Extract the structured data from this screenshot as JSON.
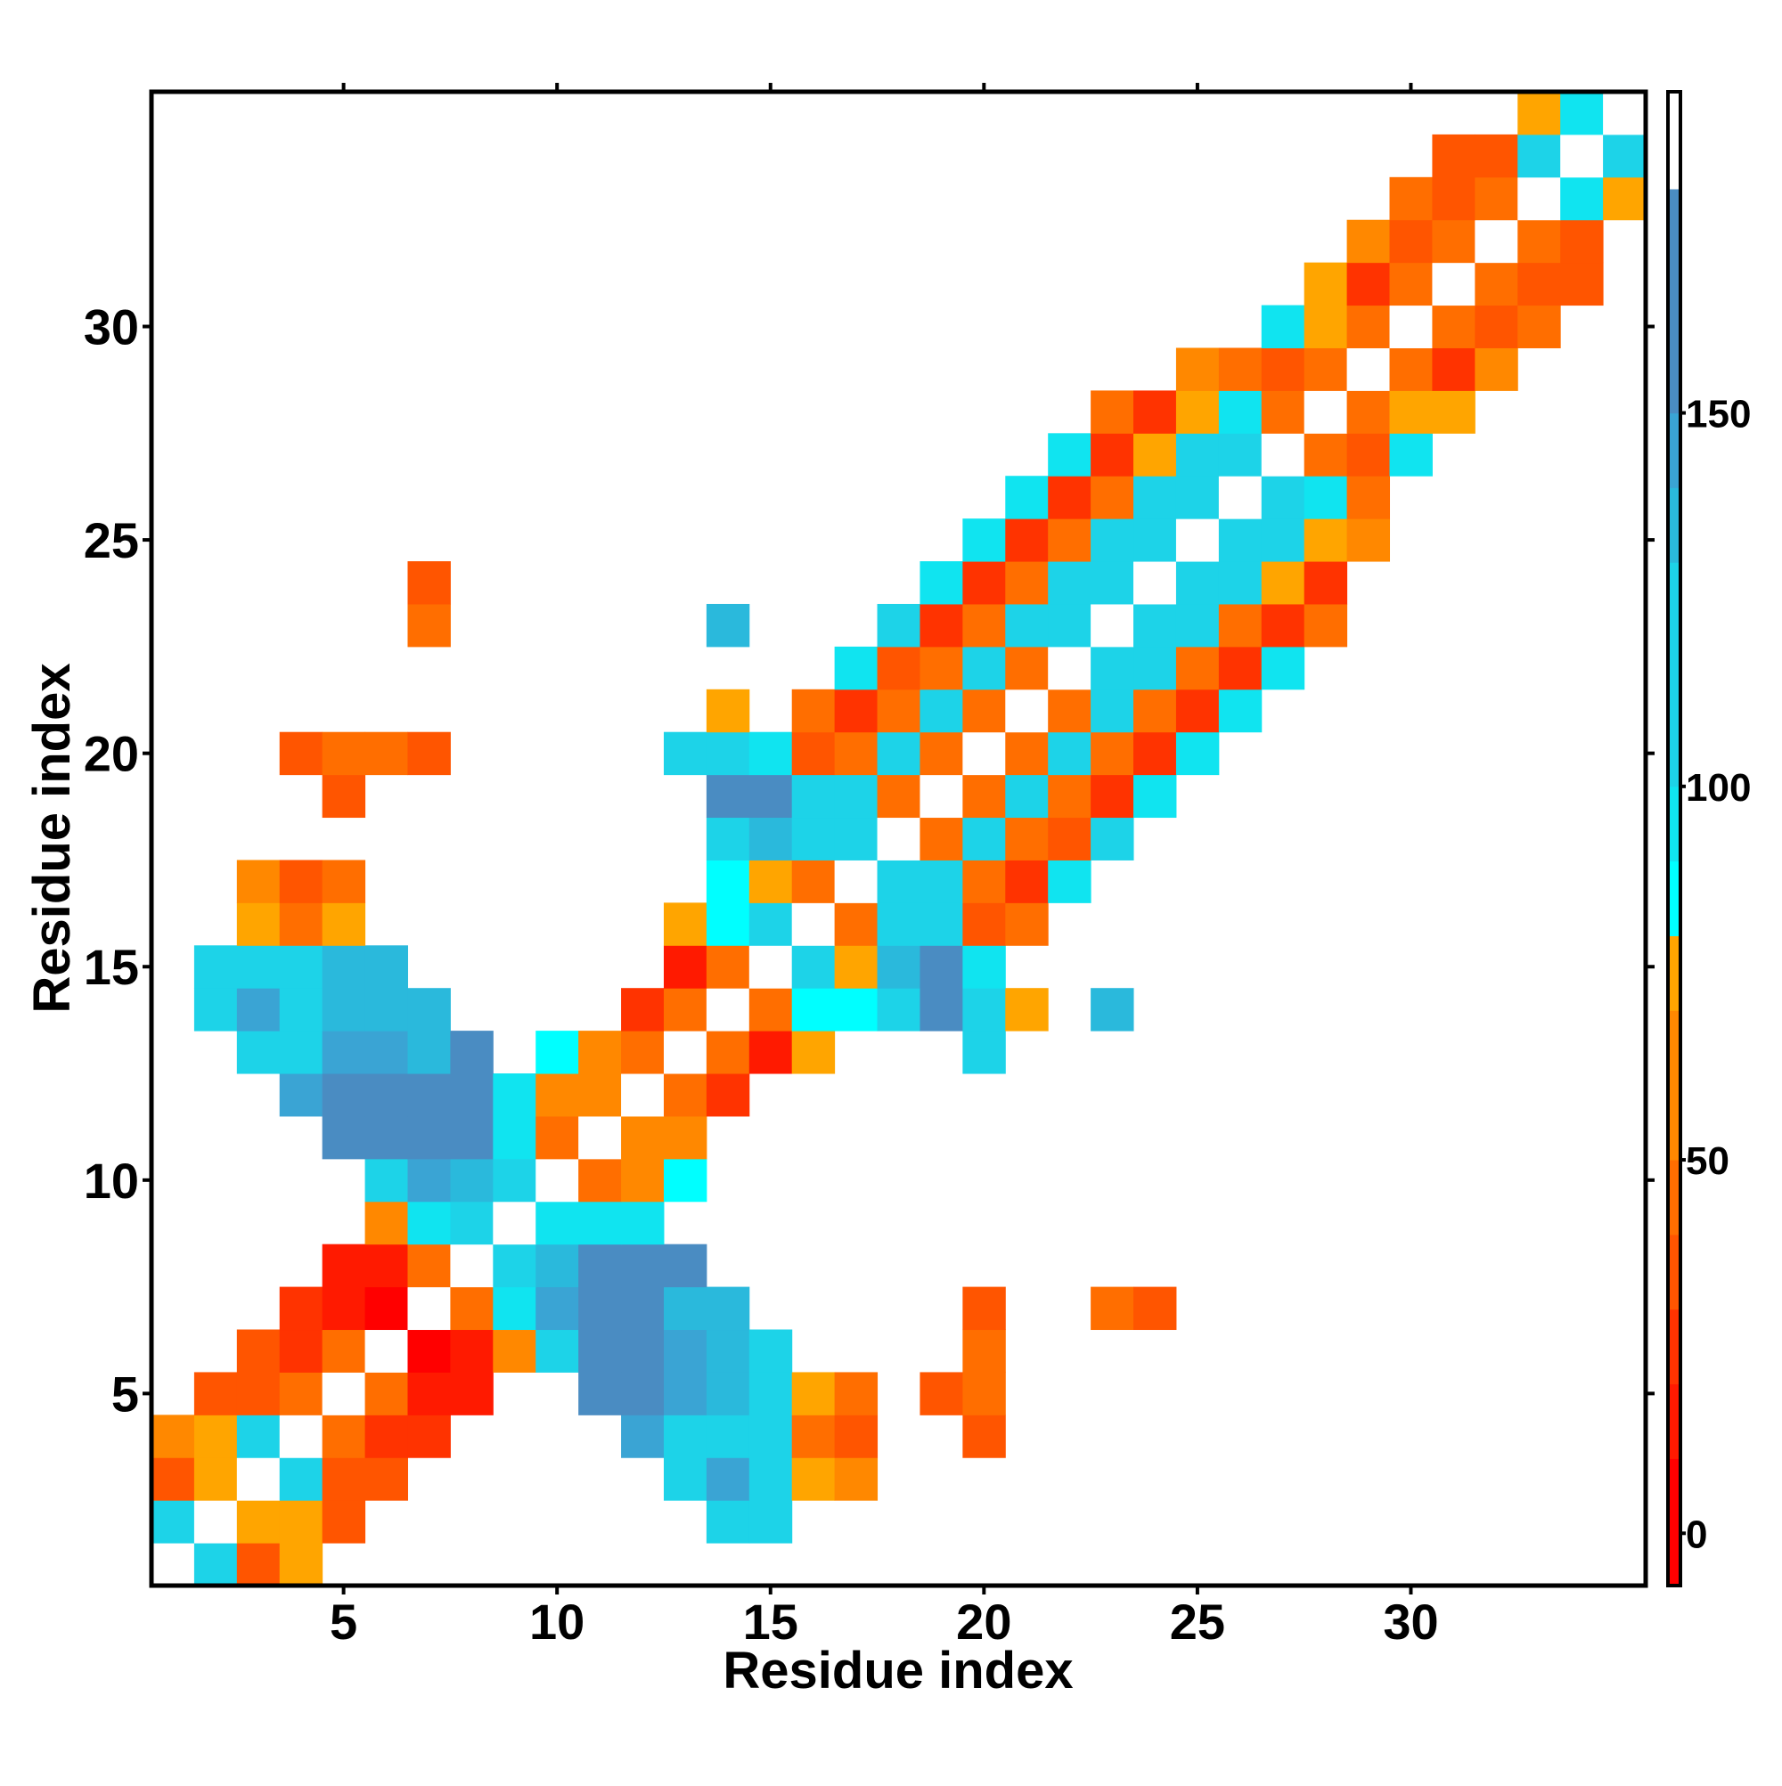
{
  "chart_data": {
    "type": "heatmap",
    "x_label": "Residue index",
    "y_label": "Residue index",
    "xlim": [
      0.5,
      35.5
    ],
    "ylim": [
      0.5,
      35.5
    ],
    "xticks": [
      5,
      10,
      15,
      20,
      25,
      30
    ],
    "yticks": [
      5,
      10,
      15,
      20,
      25,
      30
    ],
    "colorscale": {
      "bounds": [
        -7,
        10,
        20,
        30,
        40,
        50,
        70,
        80,
        90,
        100,
        130,
        140,
        150,
        180,
        193
      ],
      "colors": [
        "#ff0000",
        "#ff1a00",
        "#ff3300",
        "#ff5500",
        "#ff6e00",
        "#ff8800",
        "#ffa500",
        "#00ffff",
        "#10e4f0",
        "#1dd3e8",
        "#2ab9dc",
        "#3aa4d4",
        "#4a8cc2",
        "#ffffff"
      ]
    },
    "cticks": [
      0,
      50,
      100,
      150
    ],
    "x": [
      1,
      2,
      3,
      4,
      1,
      2,
      3,
      4,
      5,
      14,
      15,
      1,
      2,
      3,
      4,
      5,
      6,
      13,
      14,
      15,
      16,
      17,
      1,
      2,
      3,
      4,
      5,
      6,
      7,
      12,
      13,
      14,
      15,
      16,
      17,
      20,
      2,
      3,
      4,
      5,
      6,
      7,
      8,
      11,
      12,
      13,
      14,
      15,
      16,
      17,
      19,
      20,
      3,
      4,
      5,
      6,
      7,
      8,
      9,
      10,
      11,
      12,
      13,
      14,
      15,
      20,
      4,
      5,
      6,
      7,
      8,
      9,
      10,
      11,
      12,
      13,
      14,
      20,
      23,
      24,
      5,
      6,
      7,
      8,
      9,
      10,
      11,
      12,
      13,
      6,
      7,
      8,
      9,
      10,
      11,
      12,
      6,
      7,
      8,
      9,
      10,
      11,
      12,
      13,
      5,
      6,
      7,
      8,
      9,
      10,
      11,
      12,
      13,
      4,
      5,
      6,
      7,
      8,
      9,
      10,
      11,
      12,
      13,
      14,
      3,
      4,
      5,
      6,
      7,
      8,
      10,
      11,
      12,
      13,
      14,
      15,
      16,
      20,
      2,
      3,
      4,
      5,
      6,
      7,
      12,
      13,
      14,
      15,
      16,
      17,
      18,
      19,
      20,
      21,
      23,
      2,
      3,
      4,
      5,
      6,
      13,
      14,
      15,
      16,
      17,
      18,
      19,
      20,
      3,
      4,
      5,
      13,
      14,
      15,
      16,
      17,
      18,
      19,
      20,
      21,
      3,
      4,
      5,
      14,
      15,
      16,
      17,
      18,
      19,
      20,
      21,
      22,
      14,
      15,
      16,
      17,
      18,
      19,
      20,
      21,
      22,
      23,
      5,
      14,
      15,
      16,
      17,
      18,
      19,
      20,
      21,
      22,
      23,
      24,
      4,
      5,
      6,
      7,
      13,
      14,
      15,
      16,
      17,
      18,
      19,
      20,
      21,
      22,
      23,
      24,
      25,
      14,
      16,
      17,
      18,
      19,
      20,
      21,
      22,
      23,
      24,
      25,
      26,
      17,
      18,
      19,
      20,
      21,
      22,
      23,
      24,
      25,
      26,
      27,
      7,
      14,
      18,
      19,
      20,
      21,
      22,
      23,
      24,
      25,
      26,
      27,
      28,
      7,
      19,
      20,
      21,
      22,
      23,
      24,
      25,
      26,
      27,
      28,
      20,
      21,
      22,
      23,
      24,
      25,
      26,
      27,
      28,
      29,
      21,
      22,
      23,
      24,
      25,
      26,
      27,
      28,
      29,
      22,
      23,
      24,
      25,
      26,
      27,
      28,
      29,
      30,
      23,
      24,
      25,
      26,
      27,
      28,
      29,
      30,
      31,
      25,
      26,
      27,
      28,
      29,
      30,
      31,
      32,
      27,
      28,
      29,
      30,
      31,
      32,
      33,
      28,
      29,
      30,
      31,
      32,
      33,
      34,
      29,
      30,
      31,
      32,
      33,
      34,
      30,
      31,
      32,
      33,
      34,
      35,
      31,
      32,
      33,
      34,
      35,
      33,
      34,
      35
    ],
    "y": [
      1,
      1,
      1,
      1,
      2,
      2,
      2,
      2,
      2,
      2,
      2,
      3,
      3,
      3,
      3,
      3,
      3,
      3,
      3,
      3,
      3,
      3,
      4,
      4,
      4,
      4,
      4,
      4,
      4,
      4,
      4,
      4,
      4,
      4,
      4,
      4,
      5,
      5,
      5,
      5,
      5,
      5,
      5,
      5,
      5,
      5,
      5,
      5,
      5,
      5,
      5,
      5,
      6,
      6,
      6,
      6,
      6,
      6,
      6,
      6,
      6,
      6,
      6,
      6,
      6,
      6,
      7,
      7,
      7,
      7,
      7,
      7,
      7,
      7,
      7,
      7,
      7,
      7,
      7,
      7,
      8,
      8,
      8,
      8,
      8,
      8,
      8,
      8,
      8,
      9,
      9,
      9,
      9,
      9,
      9,
      9,
      10,
      10,
      10,
      10,
      10,
      10,
      10,
      10,
      11,
      11,
      11,
      11,
      11,
      11,
      11,
      11,
      11,
      12,
      12,
      12,
      12,
      12,
      12,
      12,
      12,
      12,
      12,
      12,
      13,
      13,
      13,
      13,
      13,
      13,
      13,
      13,
      13,
      13,
      13,
      13,
      13,
      13,
      14,
      14,
      14,
      14,
      14,
      14,
      14,
      14,
      14,
      14,
      14,
      14,
      14,
      14,
      14,
      14,
      14,
      15,
      15,
      15,
      15,
      15,
      15,
      15,
      15,
      15,
      15,
      15,
      15,
      15,
      16,
      16,
      16,
      16,
      16,
      16,
      16,
      16,
      16,
      16,
      16,
      16,
      17,
      17,
      17,
      17,
      17,
      17,
      17,
      17,
      17,
      17,
      17,
      17,
      18,
      18,
      18,
      18,
      18,
      18,
      18,
      18,
      18,
      18,
      19,
      19,
      19,
      19,
      19,
      19,
      19,
      19,
      19,
      19,
      19,
      19,
      20,
      20,
      20,
      20,
      20,
      20,
      20,
      20,
      20,
      20,
      20,
      20,
      20,
      20,
      20,
      20,
      20,
      21,
      21,
      21,
      21,
      21,
      21,
      21,
      21,
      21,
      21,
      21,
      21,
      22,
      22,
      22,
      22,
      22,
      22,
      22,
      22,
      22,
      22,
      22,
      23,
      23,
      23,
      23,
      23,
      23,
      23,
      23,
      23,
      23,
      23,
      23,
      23,
      24,
      24,
      24,
      24,
      24,
      24,
      24,
      24,
      24,
      24,
      24,
      25,
      25,
      25,
      25,
      25,
      25,
      25,
      25,
      25,
      25,
      26,
      26,
      26,
      26,
      26,
      26,
      26,
      26,
      26,
      27,
      27,
      27,
      27,
      27,
      27,
      27,
      27,
      27,
      28,
      28,
      28,
      28,
      28,
      28,
      28,
      28,
      28,
      29,
      29,
      29,
      29,
      29,
      29,
      29,
      29,
      30,
      30,
      30,
      30,
      30,
      30,
      30,
      31,
      31,
      31,
      31,
      31,
      31,
      31,
      32,
      32,
      32,
      32,
      32,
      32,
      33,
      33,
      33,
      33,
      33,
      33,
      34,
      34,
      34,
      34,
      34,
      35,
      35,
      35
    ],
    "values": [
      185,
      115,
      35,
      75,
      115,
      185,
      75,
      75,
      35,
      115,
      115,
      35,
      75,
      185,
      115,
      35,
      35,
      115,
      145,
      115,
      75,
      60,
      60,
      75,
      115,
      185,
      45,
      25,
      25,
      145,
      115,
      115,
      115,
      45,
      35,
      35,
      35,
      35,
      45,
      185,
      45,
      15,
      15,
      165,
      165,
      145,
      135,
      115,
      75,
      45,
      35,
      45,
      35,
      25,
      45,
      185,
      5,
      15,
      60,
      115,
      165,
      165,
      145,
      135,
      115,
      45,
      25,
      15,
      5,
      185,
      45,
      95,
      145,
      165,
      165,
      135,
      135,
      35,
      45,
      35,
      15,
      15,
      45,
      185,
      115,
      135,
      165,
      165,
      165,
      60,
      95,
      115,
      185,
      95,
      95,
      95,
      115,
      145,
      135,
      115,
      185,
      45,
      60,
      85,
      165,
      165,
      165,
      165,
      95,
      45,
      185,
      60,
      60,
      145,
      165,
      165,
      165,
      165,
      95,
      60,
      60,
      185,
      45,
      25,
      115,
      115,
      145,
      145,
      135,
      165,
      85,
      60,
      45,
      185,
      45,
      15,
      75,
      115,
      115,
      145,
      115,
      135,
      135,
      135,
      25,
      45,
      185,
      45,
      85,
      85,
      115,
      165,
      115,
      75,
      135,
      115,
      115,
      115,
      135,
      135,
      15,
      45,
      185,
      115,
      75,
      135,
      165,
      95,
      75,
      45,
      75,
      75,
      85,
      115,
      185,
      45,
      115,
      115,
      35,
      45,
      60,
      35,
      45,
      85,
      75,
      45,
      185,
      115,
      115,
      45,
      25,
      95,
      115,
      135,
      115,
      115,
      185,
      45,
      115,
      45,
      35,
      115,
      35,
      165,
      165,
      115,
      115,
      45,
      185,
      45,
      115,
      45,
      25,
      95,
      35,
      45,
      45,
      35,
      115,
      115,
      95,
      35,
      45,
      115,
      45,
      185,
      45,
      115,
      45,
      25,
      95,
      75,
      45,
      25,
      45,
      115,
      45,
      185,
      45,
      115,
      45,
      25,
      95,
      95,
      35,
      45,
      115,
      45,
      185,
      115,
      115,
      45,
      25,
      95,
      45,
      135,
      115,
      25,
      45,
      115,
      115,
      185,
      115,
      115,
      45,
      25,
      45,
      35,
      95,
      25,
      45,
      115,
      115,
      185,
      115,
      115,
      75,
      25,
      95,
      25,
      45,
      115,
      115,
      185,
      115,
      115,
      75,
      60,
      95,
      25,
      45,
      115,
      115,
      185,
      115,
      95,
      45,
      95,
      25,
      75,
      115,
      115,
      185,
      45,
      35,
      95,
      45,
      25,
      75,
      95,
      45,
      185,
      45,
      75,
      75,
      60,
      45,
      35,
      45,
      185,
      45,
      25,
      60,
      95,
      75,
      45,
      185,
      45,
      35,
      45,
      75,
      25,
      45,
      185,
      45,
      35,
      35,
      60,
      35,
      45,
      185,
      45,
      35,
      45,
      35,
      45,
      185,
      95,
      75,
      35,
      35,
      115,
      185,
      115,
      75,
      95,
      185
    ]
  }
}
